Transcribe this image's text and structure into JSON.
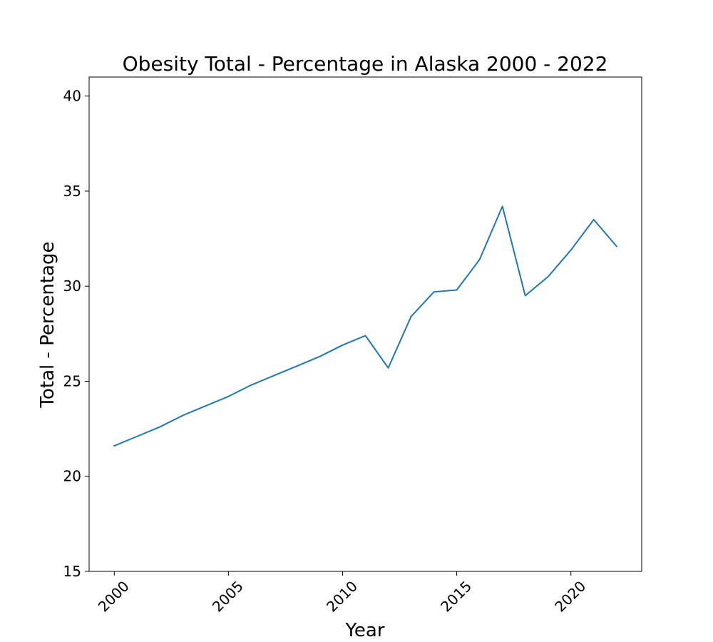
{
  "chart_data": {
    "type": "line",
    "title": "Obesity Total - Percentage in Alaska 2000 - 2022",
    "xlabel": "Year",
    "ylabel": "Total - Percentage",
    "xlim": [
      1998.9,
      2023.1
    ],
    "ylim": [
      15,
      41
    ],
    "xticks": [
      2000,
      2005,
      2010,
      2015,
      2020
    ],
    "yticks": [
      15,
      20,
      25,
      30,
      35,
      40
    ],
    "grid": false,
    "legend": "none",
    "series": [
      {
        "color": "#1f77b4",
        "x": [
          2000,
          2001,
          2002,
          2003,
          2004,
          2005,
          2006,
          2007,
          2008,
          2009,
          2010,
          2011,
          2012,
          2013,
          2014,
          2015,
          2016,
          2017,
          2018,
          2019,
          2020,
          2021,
          2022
        ],
        "values": [
          21.6,
          22.1,
          22.6,
          23.2,
          23.7,
          24.2,
          24.8,
          25.3,
          25.8,
          26.3,
          26.9,
          27.4,
          25.7,
          28.4,
          29.7,
          29.8,
          31.4,
          34.2,
          29.5,
          30.5,
          31.9,
          33.5,
          32.1
        ]
      }
    ]
  }
}
